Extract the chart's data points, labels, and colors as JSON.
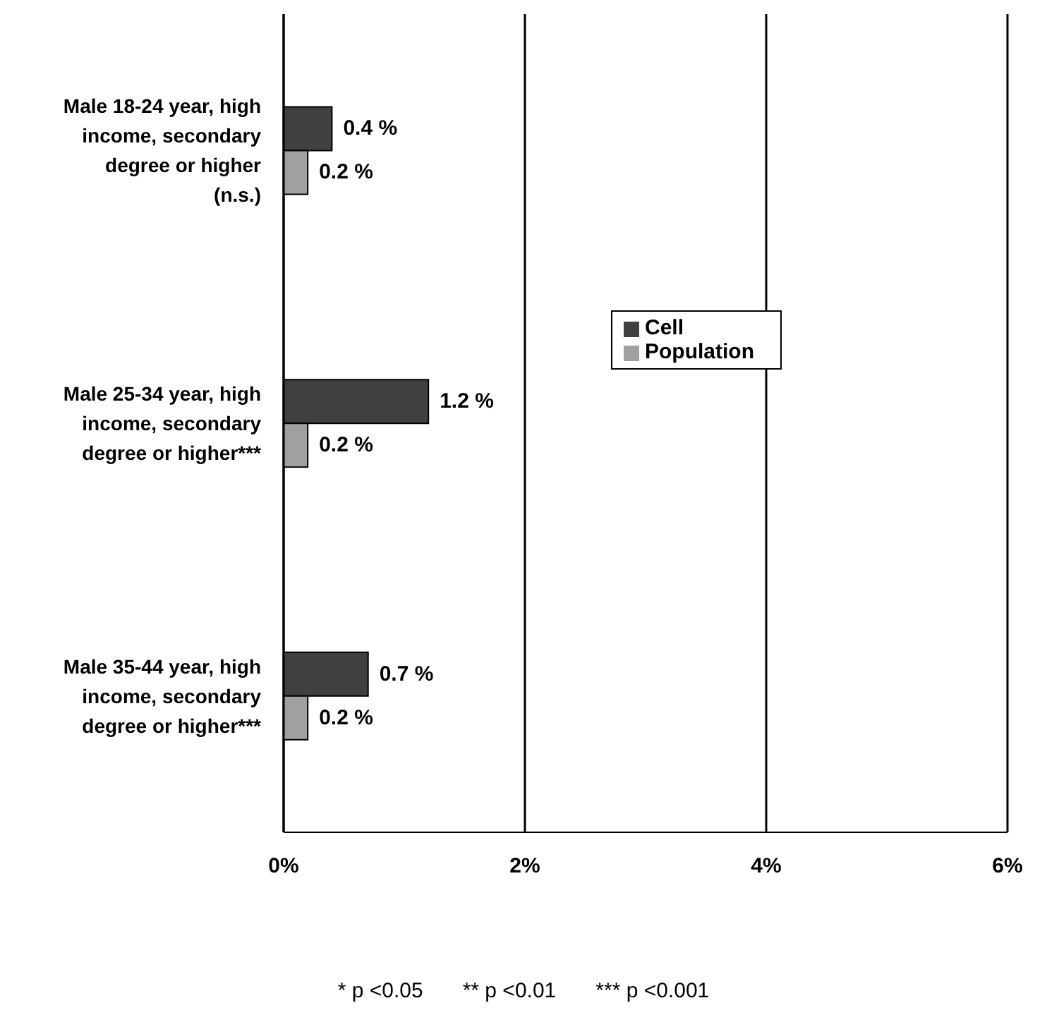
{
  "chart_data": {
    "type": "bar",
    "orientation": "horizontal",
    "categories": [
      "Male 18-24 year, high income, secondary degree or higher (n.s.)",
      "Male 25-34 year, high income, secondary degree or higher***",
      "Male 35-44 year, high income, secondary degree or higher***"
    ],
    "series": [
      {
        "name": "Cell",
        "color": "#404040",
        "values": [
          0.4,
          1.2,
          0.7
        ],
        "value_labels": [
          "0.4 %",
          "1.2 %",
          "0.7 %"
        ]
      },
      {
        "name": "Population",
        "color": "#a0a0a0",
        "values": [
          0.2,
          0.2,
          0.2
        ],
        "value_labels": [
          "0.2 %",
          "0.2 %",
          "0.2 %"
        ]
      }
    ],
    "xlim": [
      0,
      6
    ],
    "xticks": [
      {
        "value": 0,
        "label": "0%"
      },
      {
        "value": 2,
        "label": "2%"
      },
      {
        "value": 4,
        "label": "4%"
      },
      {
        "value": 6,
        "label": "6%"
      }
    ],
    "grid": "x",
    "legend": "center",
    "annotations": [
      "* p <0.05",
      "** p <0.01",
      "*** p <0.001"
    ]
  }
}
